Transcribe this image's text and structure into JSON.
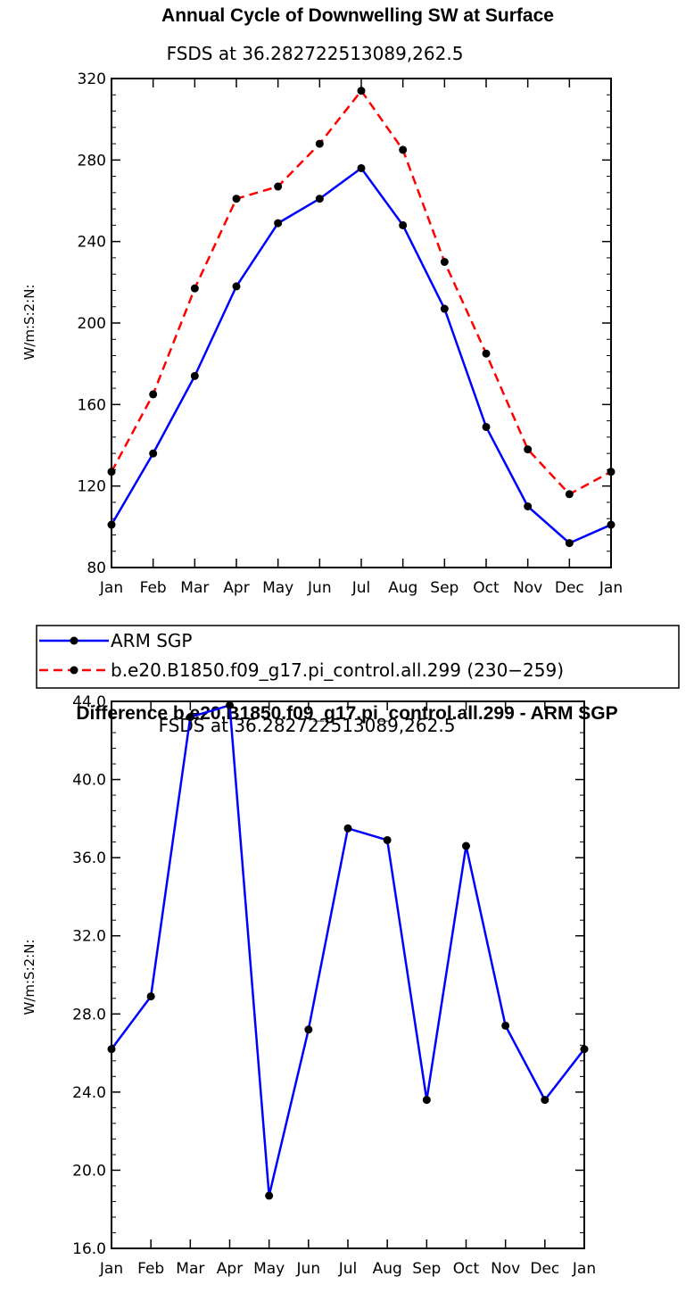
{
  "chart_data": [
    {
      "type": "line",
      "title": "Annual Cycle of Downwelling SW at Surface",
      "subtitle": "FSDS at 36.282722513089,262.5",
      "ylabel": "W/m:S:2:N:",
      "categories": [
        "Jan",
        "Feb",
        "Mar",
        "Apr",
        "May",
        "Jun",
        "Jul",
        "Aug",
        "Sep",
        "Oct",
        "Nov",
        "Dec",
        "Jan"
      ],
      "ylim": [
        80,
        320
      ],
      "yticks": [
        "80",
        "120",
        "160",
        "200",
        "240",
        "280",
        "320"
      ],
      "series": [
        {
          "name": "ARM SGP",
          "color": "#0000ff",
          "dash": "solid",
          "values": [
            101,
            136,
            174,
            218,
            249,
            261,
            276,
            248,
            207,
            149,
            110,
            92,
            101
          ]
        },
        {
          "name": "b.e20.B1850.f09_g17.pi_control.all.299 (230−259)",
          "color": "#ff0000",
          "dash": "dashed",
          "values": [
            127,
            165,
            217,
            261,
            267,
            288,
            314,
            285,
            230,
            185,
            138,
            116,
            127
          ]
        }
      ],
      "legend": {
        "placement": "below",
        "entries": [
          "ARM SGP",
          "b.e20.B1850.f09_g17.pi_control.all.299 (230−259)"
        ]
      }
    },
    {
      "type": "line",
      "title": "Difference b.e20.B1850.f09_g17.pi_control.all.299 - ARM SGP",
      "subtitle": "FSDS at 36.282722513089,262.5",
      "ylabel": "W/m:S:2:N:",
      "categories": [
        "Jan",
        "Feb",
        "Mar",
        "Apr",
        "May",
        "Jun",
        "Jul",
        "Aug",
        "Sep",
        "Oct",
        "Nov",
        "Dec",
        "Jan"
      ],
      "ylim": [
        16,
        44
      ],
      "yticks": [
        "16.0",
        "20.0",
        "24.0",
        "28.0",
        "32.0",
        "36.0",
        "40.0",
        "44.0"
      ],
      "series": [
        {
          "name": "Difference",
          "color": "#0000ff",
          "dash": "solid",
          "values": [
            26.2,
            28.9,
            43.2,
            43.8,
            18.7,
            27.2,
            37.5,
            36.9,
            23.6,
            36.6,
            27.4,
            23.6,
            26.2
          ]
        }
      ]
    }
  ]
}
